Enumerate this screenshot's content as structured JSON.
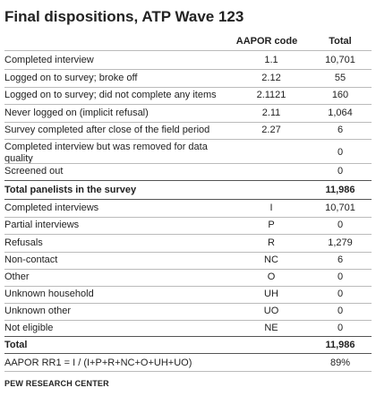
{
  "title": "Final dispositions, ATP Wave 123",
  "headers": {
    "code": "AAPOR code",
    "total": "Total"
  },
  "rows": [
    {
      "label": "Completed interview",
      "code": "1.1",
      "total": "10,701"
    },
    {
      "label": "Logged on to survey; broke off",
      "code": "2.12",
      "total": "55"
    },
    {
      "label": "Logged on to survey; did not complete any items",
      "code": "2.1121",
      "total": "160"
    },
    {
      "label": "Never logged on (implicit refusal)",
      "code": "2.11",
      "total": "1,064"
    },
    {
      "label": "Survey completed after close of the field period",
      "code": "2.27",
      "total": "6"
    },
    {
      "label": "Completed interview but was removed for data quality",
      "code": "",
      "total": "0"
    },
    {
      "label": "Screened out",
      "code": "",
      "total": "0"
    },
    {
      "label": "Total panelists in the survey",
      "code": "",
      "total": "11,986"
    },
    {
      "label": "Completed interviews",
      "code": "I",
      "total": "10,701"
    },
    {
      "label": "Partial interviews",
      "code": "P",
      "total": "0"
    },
    {
      "label": "Refusals",
      "code": "R",
      "total": "1,279"
    },
    {
      "label": "Non-contact",
      "code": "NC",
      "total": "6"
    },
    {
      "label": "Other",
      "code": "O",
      "total": "0"
    },
    {
      "label": "Unknown household",
      "code": "UH",
      "total": "0"
    },
    {
      "label": "Unknown other",
      "code": "UO",
      "total": "0"
    },
    {
      "label": "Not eligible",
      "code": "NE",
      "total": "0"
    },
    {
      "label": "Total",
      "code": "",
      "total": "11,986"
    },
    {
      "label": "AAPOR RR1 = I / (I+P+R+NC+O+UH+UO)",
      "code": "",
      "total": "89%"
    }
  ],
  "source": "PEW RESEARCH CENTER"
}
